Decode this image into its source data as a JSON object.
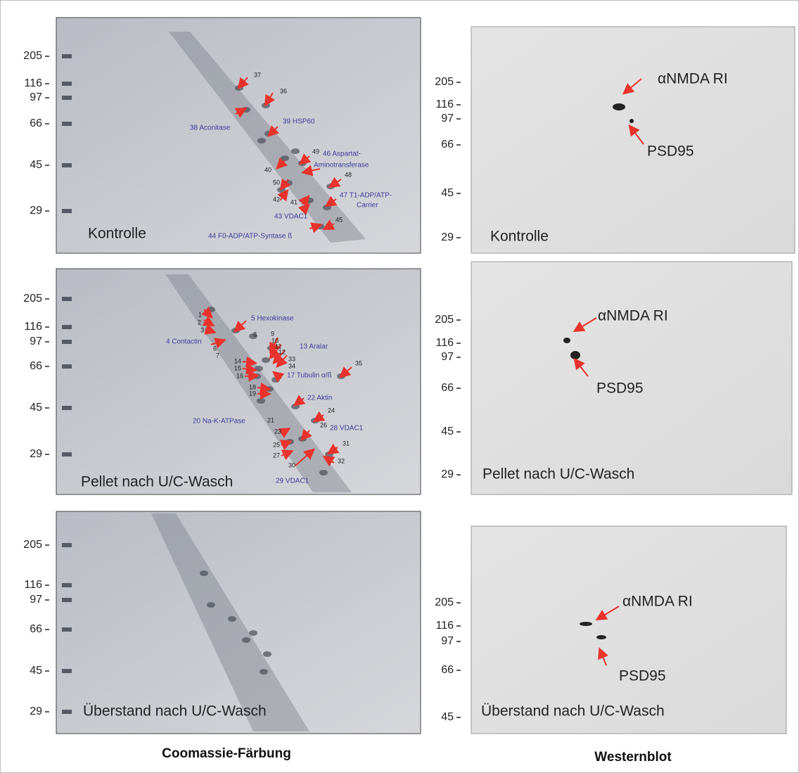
{
  "panels": [
    {
      "mw_markers": [
        205,
        116,
        97,
        66,
        45,
        29
      ],
      "label": "Kontrolle",
      "annotations": [
        "37",
        "36",
        "38 Aconitase",
        "39 HSP60",
        "49",
        "46 Aspartat-",
        "Aminotransferase",
        "48",
        "40",
        "50",
        "42",
        "41",
        "47 T1-ADP/ATP-",
        "Carrier",
        "43 VDAC1",
        "45",
        "44 F0-ADP/ATP-Syntase ß"
      ]
    },
    {
      "mw_markers": [
        205,
        116,
        97,
        66,
        45,
        29
      ],
      "label": "Pellet nach U/C-Wasch",
      "annotations": [
        "5 Hexokinase",
        "1",
        "2",
        "3",
        "4 Contactin",
        "6",
        "7",
        "8",
        "9",
        "10",
        "11",
        "12",
        "13 Aralar",
        "33",
        "34",
        "14",
        "15",
        "16",
        "17 Tubulin α/ß",
        "35",
        "18",
        "19",
        "22 Aktin",
        "24",
        "21",
        "20 Na-K-ATPase",
        "26",
        "28 VDAC1",
        "23",
        "25",
        "31",
        "27",
        "32",
        "30",
        "29 VDAC1"
      ]
    },
    {
      "mw_markers": [
        205,
        116,
        97,
        66,
        45,
        29
      ],
      "label": "Überstand nach U/C-Wasch",
      "annotations": []
    },
    {
      "mw_markers": [
        205,
        116,
        97,
        66,
        45,
        29
      ],
      "label": "Kontrolle",
      "annotations": [
        "αNMDA RI",
        "PSD95"
      ]
    },
    {
      "mw_markers": [
        205,
        116,
        97,
        66,
        45,
        29
      ],
      "label": "Pellet nach U/C-Wasch",
      "annotations": [
        "αNMDA RI",
        "PSD95"
      ]
    },
    {
      "mw_markers": [
        205,
        116,
        97,
        66,
        45
      ],
      "label": "Überstand nach U/C-Wasch",
      "annotations": [
        "αNMDA RI",
        "PSD95"
      ]
    }
  ],
  "column_titles": [
    "Coomassie-Färbung",
    "Westernblot"
  ]
}
